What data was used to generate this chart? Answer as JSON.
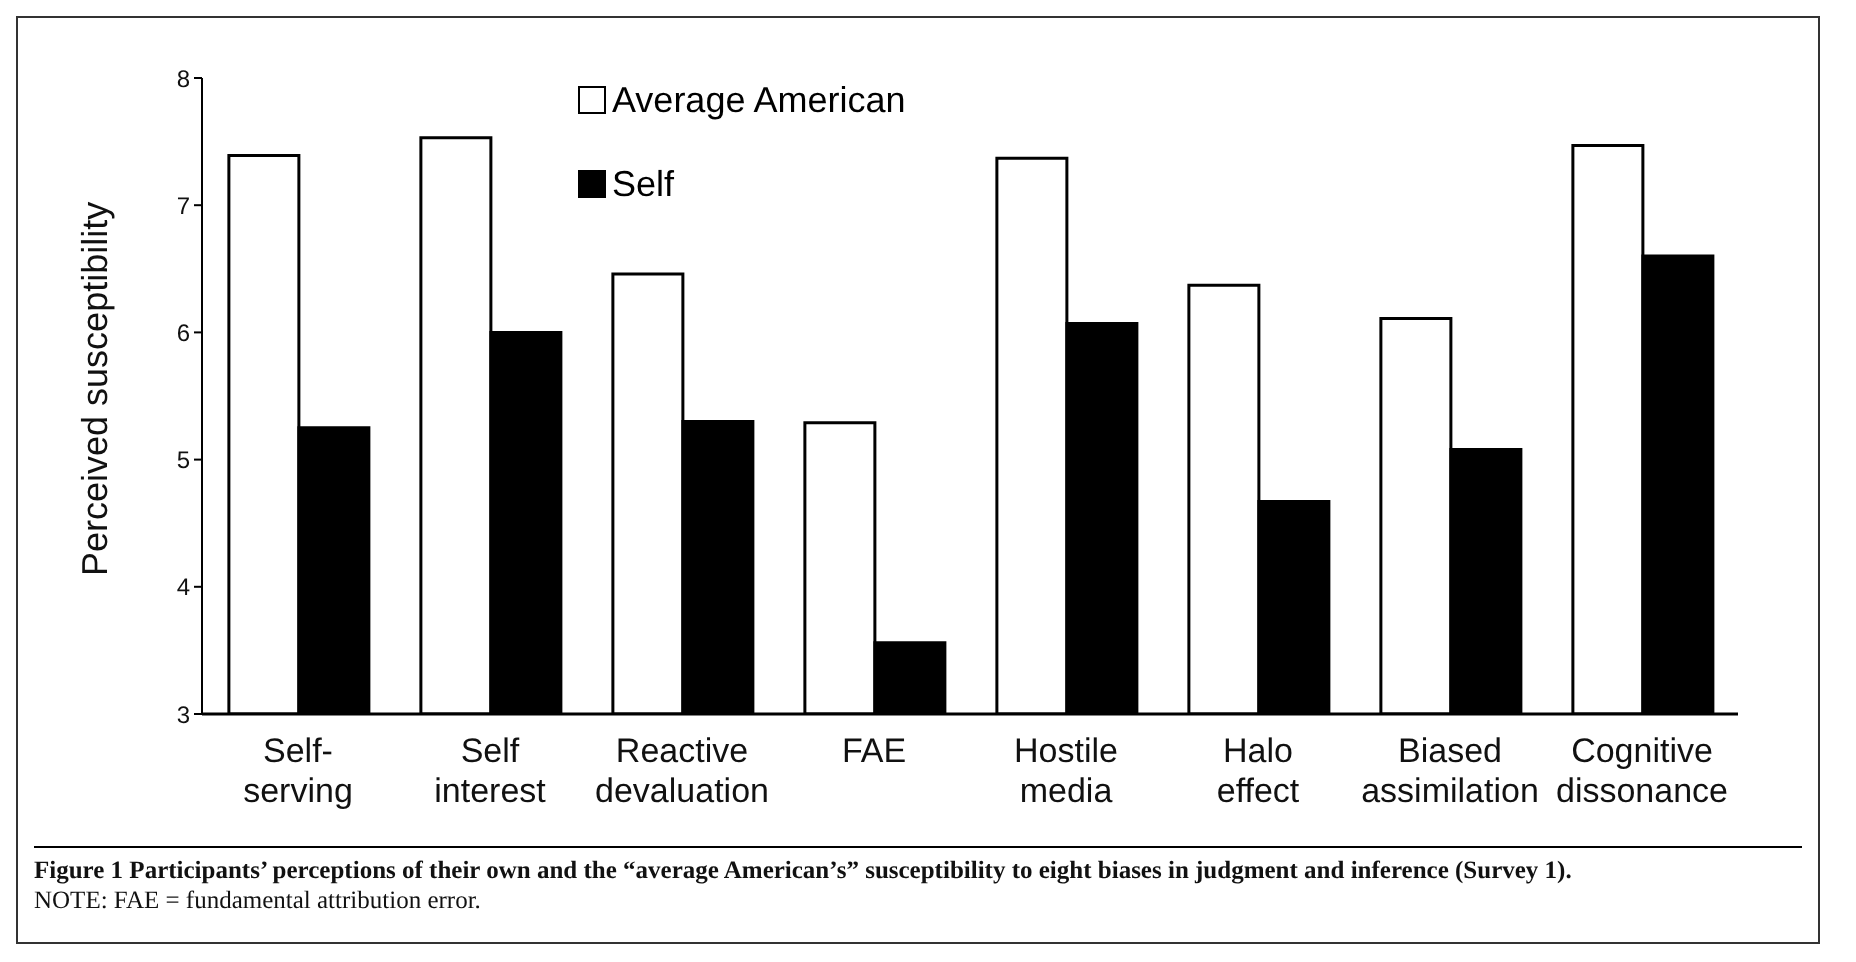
{
  "chart_data": {
    "type": "bar",
    "ylabel": "Perceived susceptibility",
    "categories": [
      "Self-serving",
      "Self interest",
      "Reactive devaluation",
      "FAE",
      "Hostile media",
      "Halo effect",
      "Biased assimilation",
      "Cognitive dissonance"
    ],
    "series": [
      {
        "name": "Average American",
        "color": "#ffffff",
        "values": [
          7.39,
          7.53,
          6.46,
          5.29,
          7.37,
          6.37,
          6.11,
          7.47
        ]
      },
      {
        "name": "Self",
        "color": "#000000",
        "values": [
          5.25,
          6.0,
          5.3,
          3.56,
          6.07,
          4.67,
          5.08,
          6.6
        ]
      }
    ],
    "ylim": [
      3,
      8
    ],
    "yticks": [
      3,
      4,
      5,
      6,
      7,
      8
    ],
    "grid": false,
    "legend": "top",
    "annotations": [
      "Figure 1    Participants’ perceptions of their own and the “average American’s” susceptibility to eight biases in judgment and inference (Survey 1).",
      "NOTE: FAE = fundamental attribution error."
    ]
  }
}
